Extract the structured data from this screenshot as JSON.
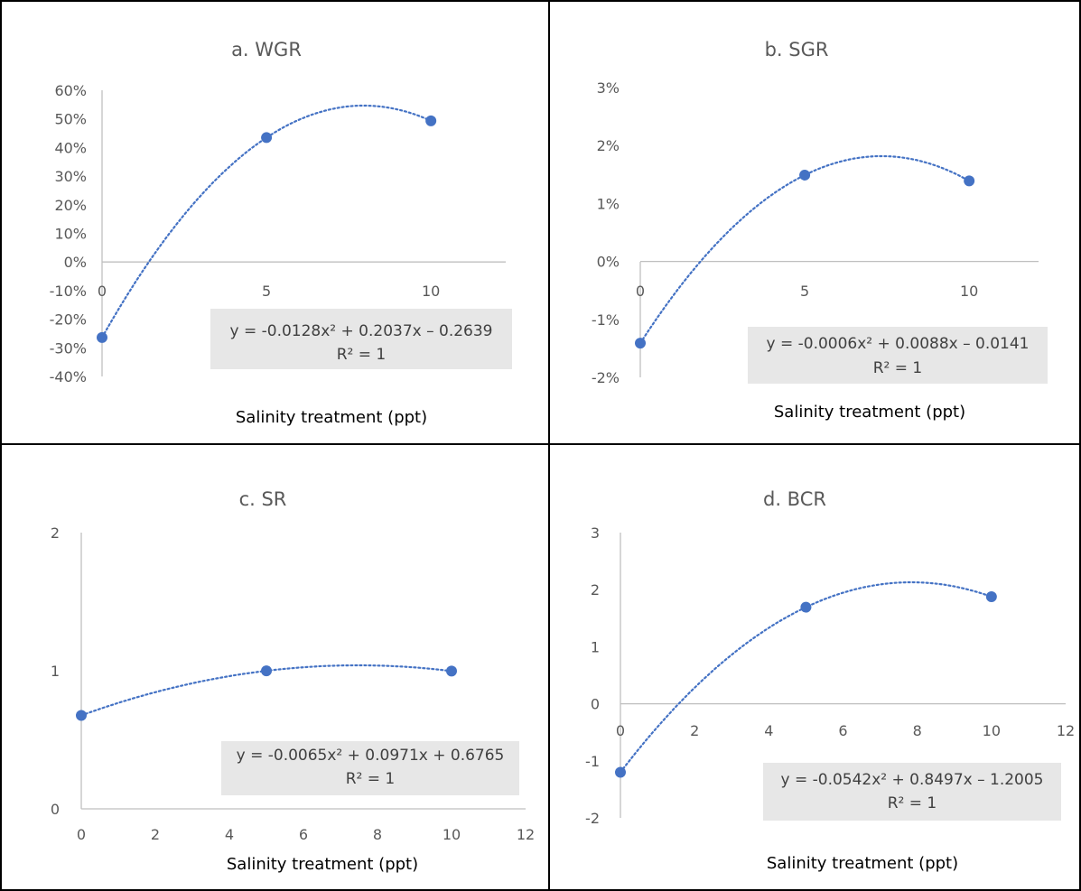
{
  "colors": {
    "series": "#4472c4",
    "axis": "#bfbfbf",
    "text": "#595959",
    "equation_box": "#e7e7e7"
  },
  "chart_data": [
    {
      "id": "a",
      "type": "scatter",
      "title": "a. WGR",
      "xlabel": "Salinity treatment (ppt)",
      "x_ticks": [
        "0",
        "5",
        "10"
      ],
      "y_ticks": [
        "60%",
        "50%",
        "40%",
        "30%",
        "20%",
        "10%",
        "0%",
        "-10%",
        "-20%",
        "-30%",
        "-40%"
      ],
      "y_tick_values": [
        0.6,
        0.5,
        0.4,
        0.3,
        0.2,
        0.1,
        0,
        -0.1,
        -0.2,
        -0.3,
        -0.4
      ],
      "xlim": [
        0,
        12
      ],
      "ylim": [
        -0.4,
        0.6
      ],
      "points": [
        {
          "x": 0,
          "y": -0.2639
        },
        {
          "x": 5,
          "y": 0.4346
        },
        {
          "x": 10,
          "y": 0.4931
        }
      ],
      "trendline": {
        "type": "polynomial",
        "a": -0.0128,
        "b": 0.2037,
        "c": -0.2639
      },
      "equation": "y = -0.0128x² + 0.2037x – 0.2639",
      "r2": "R² = 1"
    },
    {
      "id": "b",
      "type": "scatter",
      "title": "b. SGR",
      "xlabel": "Salinity treatment (ppt)",
      "x_ticks": [
        "0",
        "5",
        "10"
      ],
      "y_ticks": [
        "3%",
        "2%",
        "1%",
        "0%",
        "-1%",
        "-2%"
      ],
      "y_tick_values": [
        0.03,
        0.02,
        0.01,
        0,
        -0.01,
        -0.02
      ],
      "xlim": [
        0,
        12
      ],
      "ylim": [
        -0.02,
        0.03
      ],
      "points": [
        {
          "x": 0,
          "y": -0.0141
        },
        {
          "x": 5,
          "y": 0.0149
        },
        {
          "x": 10,
          "y": 0.0139
        }
      ],
      "trendline": {
        "type": "polynomial",
        "a": -0.0006,
        "b": 0.0088,
        "c": -0.0141
      },
      "equation": "y = -0.0006x² + 0.0088x – 0.0141",
      "r2": "R² = 1"
    },
    {
      "id": "c",
      "type": "scatter",
      "title": "c. SR",
      "xlabel": "Salinity treatment (ppt)",
      "x_ticks": [
        "0",
        "2",
        "4",
        "6",
        "8",
        "10",
        "12"
      ],
      "y_ticks": [
        "2",
        "1",
        "0"
      ],
      "y_tick_values": [
        2,
        1,
        0
      ],
      "xlim": [
        0,
        12
      ],
      "ylim": [
        0,
        2
      ],
      "points": [
        {
          "x": 0,
          "y": 0.6765
        },
        {
          "x": 5,
          "y": 0.9995
        },
        {
          "x": 10,
          "y": 0.9975
        }
      ],
      "trendline": {
        "type": "polynomial",
        "a": -0.0065,
        "b": 0.0971,
        "c": 0.6765
      },
      "equation": "y = -0.0065x² + 0.0971x + 0.6765",
      "r2": "R² = 1"
    },
    {
      "id": "d",
      "type": "scatter",
      "title": "d. BCR",
      "xlabel": "Salinity treatment (ppt)",
      "x_ticks": [
        "0",
        "2",
        "4",
        "6",
        "8",
        "10",
        "12"
      ],
      "y_ticks": [
        "3",
        "2",
        "1",
        "0",
        "-1",
        "-2"
      ],
      "y_tick_values": [
        3,
        2,
        1,
        0,
        -1,
        -2
      ],
      "xlim": [
        0,
        12
      ],
      "ylim": [
        -2,
        3
      ],
      "points": [
        {
          "x": 0,
          "y": -1.2005
        },
        {
          "x": 5,
          "y": 1.693
        },
        {
          "x": 10,
          "y": 1.877
        }
      ],
      "trendline": {
        "type": "polynomial",
        "a": -0.0542,
        "b": 0.8497,
        "c": -1.2005
      },
      "equation": "y = -0.0542x² + 0.8497x – 1.2005",
      "r2": "R² = 1"
    }
  ]
}
